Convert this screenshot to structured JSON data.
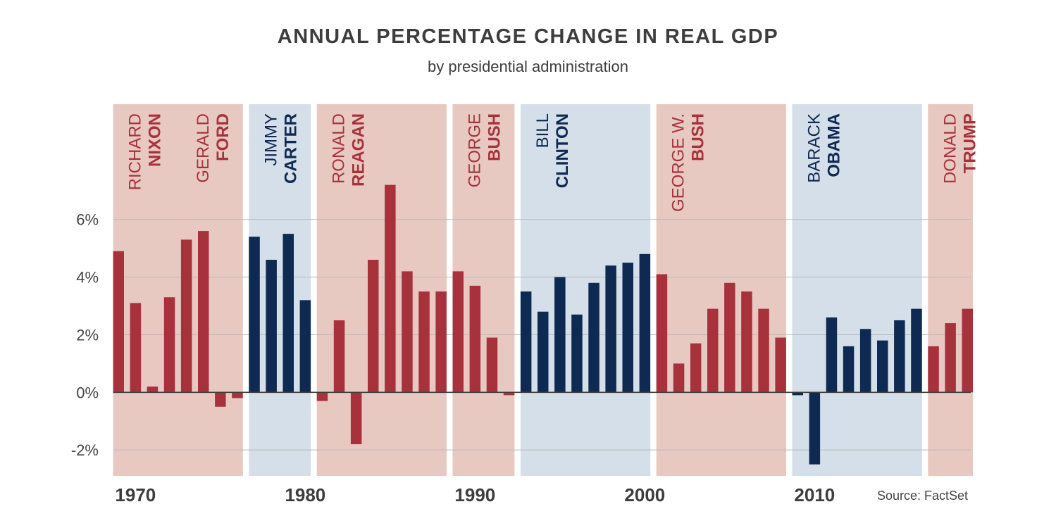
{
  "header": {
    "title": "ANNUAL PERCENTAGE CHANGE IN REAL GDP",
    "subtitle": "by presidential administration"
  },
  "source": "Source: FactSet",
  "colors": {
    "republican_band": "#e8c9c2",
    "democrat_band": "#d5dfea",
    "republican_bar": "#a8323c",
    "democrat_bar": "#0e2a52",
    "republican_text": "#a8323c",
    "democrat_text": "#0e2a52",
    "grid": "#b8b8b8",
    "axis": "#3d3d3d",
    "tick_text": "#444444"
  },
  "chart_data": {
    "type": "bar",
    "title": "ANNUAL PERCENTAGE CHANGE IN REAL GDP",
    "subtitle": "by presidential administration",
    "xlabel": "",
    "ylabel": "",
    "ylim": [
      -2.9,
      10
    ],
    "grid": true,
    "yticks": [
      {
        "value": 6,
        "label": "6%"
      },
      {
        "value": 4,
        "label": "4%"
      },
      {
        "value": 2,
        "label": "2%"
      },
      {
        "value": 0,
        "label": "0%"
      },
      {
        "value": -2,
        "label": "-2%"
      }
    ],
    "xticks": [
      {
        "year": 1970,
        "label": "1970"
      },
      {
        "year": 1980,
        "label": "1980"
      },
      {
        "year": 1990,
        "label": "1990"
      },
      {
        "year": 2000,
        "label": "2000"
      },
      {
        "year": 2010,
        "label": "2010"
      }
    ],
    "administrations": [
      {
        "first": "RICHARD",
        "last": "NIXON",
        "party": "R",
        "start": 1969,
        "end": 1973
      },
      {
        "first": "GERALD",
        "last": "FORD",
        "party": "R",
        "start": 1973,
        "end": 1976
      },
      {
        "first": "JIMMY",
        "last": "CARTER",
        "party": "D",
        "start": 1977,
        "end": 1980
      },
      {
        "first": "RONALD",
        "last": "REAGAN",
        "party": "R",
        "start": 1981,
        "end": 1988
      },
      {
        "first": "GEORGE",
        "last": "BUSH",
        "party": "R",
        "start": 1989,
        "end": 1992
      },
      {
        "first": "BILL",
        "last": "CLINTON",
        "party": "D",
        "start": 1993,
        "end": 2000
      },
      {
        "first": "GEORGE W.",
        "last": "BUSH",
        "party": "R",
        "start": 2001,
        "end": 2008
      },
      {
        "first": "BARACK",
        "last": "OBAMA",
        "party": "D",
        "start": 2009,
        "end": 2016
      },
      {
        "first": "DONALD",
        "last": "TRUMP",
        "party": "R",
        "start": 2017,
        "end": 2019
      }
    ],
    "bars": [
      {
        "year": 1969,
        "value": 4.9,
        "party": "R"
      },
      {
        "year": 1970,
        "value": 3.1,
        "party": "R"
      },
      {
        "year": 1971,
        "value": 0.2,
        "party": "R"
      },
      {
        "year": 1972,
        "value": 3.3,
        "party": "R"
      },
      {
        "year": 1973,
        "value": 5.3,
        "party": "R"
      },
      {
        "year": 1974,
        "value": 5.6,
        "party": "R"
      },
      {
        "year": 1975,
        "value": -0.5,
        "party": "R"
      },
      {
        "year": 1976,
        "value": -0.2,
        "party": "R"
      },
      {
        "year": 1977,
        "value": 5.4,
        "party": "D"
      },
      {
        "year": 1978,
        "value": 4.6,
        "party": "D"
      },
      {
        "year": 1979,
        "value": 5.5,
        "party": "D"
      },
      {
        "year": 1980,
        "value": 3.2,
        "party": "D"
      },
      {
        "year": 1981,
        "value": -0.3,
        "party": "R"
      },
      {
        "year": 1982,
        "value": 2.5,
        "party": "R"
      },
      {
        "year": 1983,
        "value": -1.8,
        "party": "R"
      },
      {
        "year": 1984,
        "value": 4.6,
        "party": "R"
      },
      {
        "year": 1985,
        "value": 7.2,
        "party": "R"
      },
      {
        "year": 1986,
        "value": 4.2,
        "party": "R"
      },
      {
        "year": 1987,
        "value": 3.5,
        "party": "R"
      },
      {
        "year": 1988,
        "value": 3.5,
        "party": "R"
      },
      {
        "year": 1989,
        "value": 4.2,
        "party": "R"
      },
      {
        "year": 1990,
        "value": 3.7,
        "party": "R"
      },
      {
        "year": 1991,
        "value": 1.9,
        "party": "R"
      },
      {
        "year": 1992,
        "value": -0.1,
        "party": "R"
      },
      {
        "year": 1993,
        "value": 3.5,
        "party": "D"
      },
      {
        "year": 1994,
        "value": 2.8,
        "party": "D"
      },
      {
        "year": 1995,
        "value": 4.0,
        "party": "D"
      },
      {
        "year": 1996,
        "value": 2.7,
        "party": "D"
      },
      {
        "year": 1997,
        "value": 3.8,
        "party": "D"
      },
      {
        "year": 1998,
        "value": 4.4,
        "party": "D"
      },
      {
        "year": 1999,
        "value": 4.5,
        "party": "D"
      },
      {
        "year": 2000,
        "value": 4.8,
        "party": "D"
      },
      {
        "year": 2001,
        "value": 4.1,
        "party": "R"
      },
      {
        "year": 2002,
        "value": 1.0,
        "party": "R"
      },
      {
        "year": 2003,
        "value": 1.7,
        "party": "R"
      },
      {
        "year": 2004,
        "value": 2.9,
        "party": "R"
      },
      {
        "year": 2005,
        "value": 3.8,
        "party": "R"
      },
      {
        "year": 2006,
        "value": 3.5,
        "party": "R"
      },
      {
        "year": 2007,
        "value": 2.9,
        "party": "R"
      },
      {
        "year": 2008,
        "value": 1.9,
        "party": "R"
      },
      {
        "year": 2009,
        "value": -0.1,
        "party": "D"
      },
      {
        "year": 2010,
        "value": -2.5,
        "party": "D"
      },
      {
        "year": 2011,
        "value": 2.6,
        "party": "D"
      },
      {
        "year": 2012,
        "value": 1.6,
        "party": "D"
      },
      {
        "year": 2013,
        "value": 2.2,
        "party": "D"
      },
      {
        "year": 2014,
        "value": 1.8,
        "party": "D"
      },
      {
        "year": 2015,
        "value": 2.5,
        "party": "D"
      },
      {
        "year": 2016,
        "value": 2.9,
        "party": "D"
      },
      {
        "year": 2017,
        "value": 1.6,
        "party": "R"
      },
      {
        "year": 2018,
        "value": 2.4,
        "party": "R"
      },
      {
        "year": 2019,
        "value": 2.9,
        "party": "R"
      }
    ]
  }
}
